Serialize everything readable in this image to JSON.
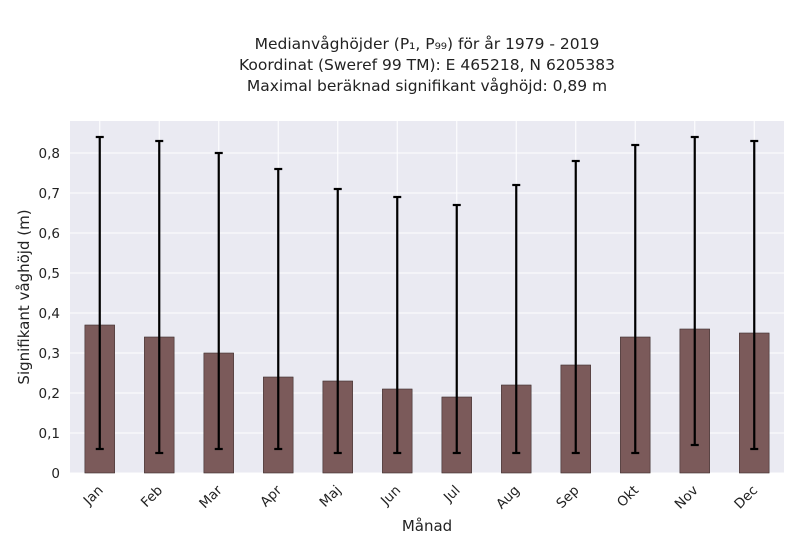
{
  "chart_data": {
    "type": "bar",
    "title_lines": [
      "Medianvåghöjder (P₁, P₉₉) för år 1979 - 2019",
      "Koordinat (Sweref 99 TM): E 465218, N 6205383",
      "Maximal beräknad signifikant våghöjd: 0,89 m"
    ],
    "xlabel": "Månad",
    "ylabel": "Signifikant våghöjd (m)",
    "categories": [
      "Jan",
      "Feb",
      "Mar",
      "Apr",
      "Maj",
      "Jun",
      "Jul",
      "Aug",
      "Sep",
      "Okt",
      "Nov",
      "Dec"
    ],
    "values": [
      0.37,
      0.34,
      0.3,
      0.24,
      0.23,
      0.21,
      0.19,
      0.22,
      0.27,
      0.34,
      0.36,
      0.35
    ],
    "error_low": [
      0.06,
      0.05,
      0.06,
      0.06,
      0.05,
      0.05,
      0.05,
      0.05,
      0.05,
      0.05,
      0.07,
      0.06
    ],
    "error_high": [
      0.84,
      0.83,
      0.8,
      0.76,
      0.71,
      0.69,
      0.67,
      0.72,
      0.78,
      0.82,
      0.84,
      0.83
    ],
    "ylim": [
      0,
      0.88
    ],
    "yticks": [
      0,
      0.1,
      0.2,
      0.3,
      0.4,
      0.5,
      0.6,
      0.7,
      0.8
    ],
    "ytick_labels": [
      "0",
      "0,1",
      "0,2",
      "0,3",
      "0,4",
      "0,5",
      "0,6",
      "0,7",
      "0,8"
    ],
    "grid": true,
    "colors": {
      "bar_fill": "#7b5a5a",
      "bar_stroke": "#3a2a2a",
      "error_bar": "#000000",
      "plot_background": "#eaeaf2",
      "grid": "#ffffff"
    }
  }
}
